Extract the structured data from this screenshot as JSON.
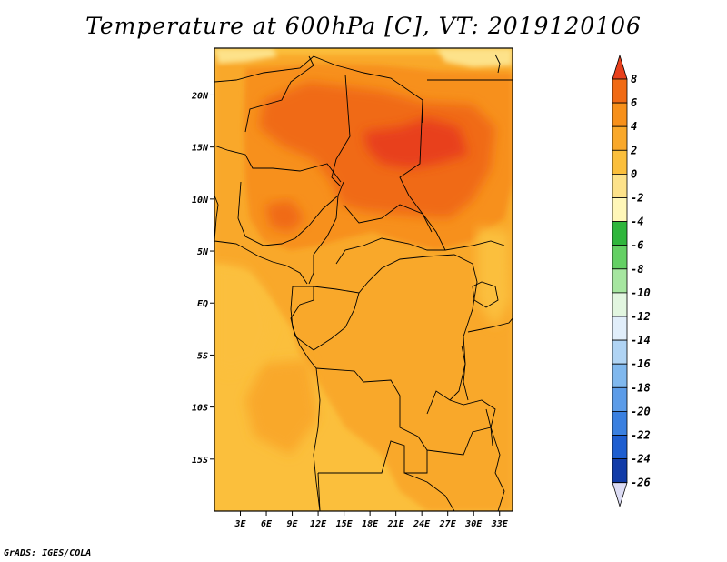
{
  "title": "Temperature at 600hPa [C], VT: 2019120106",
  "credit": "GrADS: IGES/COLA",
  "map": {
    "lon_range": [
      0,
      34.5
    ],
    "lat_range": [
      -20,
      24.5
    ],
    "lat_ticks": [
      {
        "value": 20,
        "label": "20N"
      },
      {
        "value": 15,
        "label": "15N"
      },
      {
        "value": 10,
        "label": "10N"
      },
      {
        "value": 5,
        "label": "5N"
      },
      {
        "value": 0,
        "label": "EQ"
      },
      {
        "value": -5,
        "label": "5S"
      },
      {
        "value": -10,
        "label": "10S"
      },
      {
        "value": -15,
        "label": "15S"
      }
    ],
    "lon_ticks": [
      {
        "value": 3,
        "label": "3E"
      },
      {
        "value": 6,
        "label": "6E"
      },
      {
        "value": 9,
        "label": "9E"
      },
      {
        "value": 12,
        "label": "12E"
      },
      {
        "value": 15,
        "label": "15E"
      },
      {
        "value": 18,
        "label": "18E"
      },
      {
        "value": 21,
        "label": "21E"
      },
      {
        "value": 24,
        "label": "24E"
      },
      {
        "value": 27,
        "label": "27E"
      },
      {
        "value": 30,
        "label": "30E"
      },
      {
        "value": 33,
        "label": "33E"
      }
    ]
  },
  "colorbar": {
    "labels": [
      "8",
      "6",
      "4",
      "2",
      "0",
      "-2",
      "-4",
      "-6",
      "-8",
      "-10",
      "-12",
      "-14",
      "-16",
      "-18",
      "-20",
      "-22",
      "-24",
      "-26"
    ],
    "colors": [
      "#e8401c",
      "#f06a14",
      "#f7901a",
      "#f9a82a",
      "#fbbf3c",
      "#fde28a",
      "#fff7b8",
      "#2fb63c",
      "#64d064",
      "#a6e6a0",
      "#e2f6e0",
      "#e1eefa",
      "#b0d4f4",
      "#80b8ee",
      "#5c9ce8",
      "#3a80e0",
      "#1e5ed0",
      "#123ca8",
      "#0a1a78",
      "#dcdcf4"
    ]
  }
}
